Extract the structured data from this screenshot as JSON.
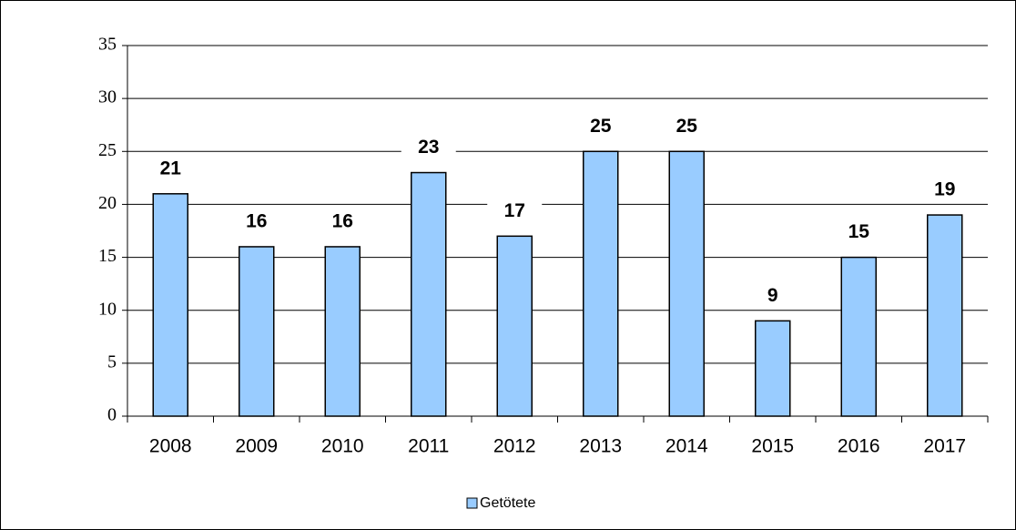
{
  "chart_data": {
    "type": "bar",
    "categories": [
      "2008",
      "2009",
      "2010",
      "2011",
      "2012",
      "2013",
      "2014",
      "2015",
      "2016",
      "2017"
    ],
    "series": [
      {
        "name": "Getötete",
        "color": "#99ccff",
        "values": [
          21,
          16,
          16,
          23,
          17,
          25,
          25,
          9,
          15,
          19
        ]
      }
    ],
    "ylim": [
      0,
      35
    ],
    "yticks": [
      0,
      5,
      10,
      15,
      20,
      25,
      30,
      35
    ],
    "grid": true,
    "legend": "bottom"
  }
}
